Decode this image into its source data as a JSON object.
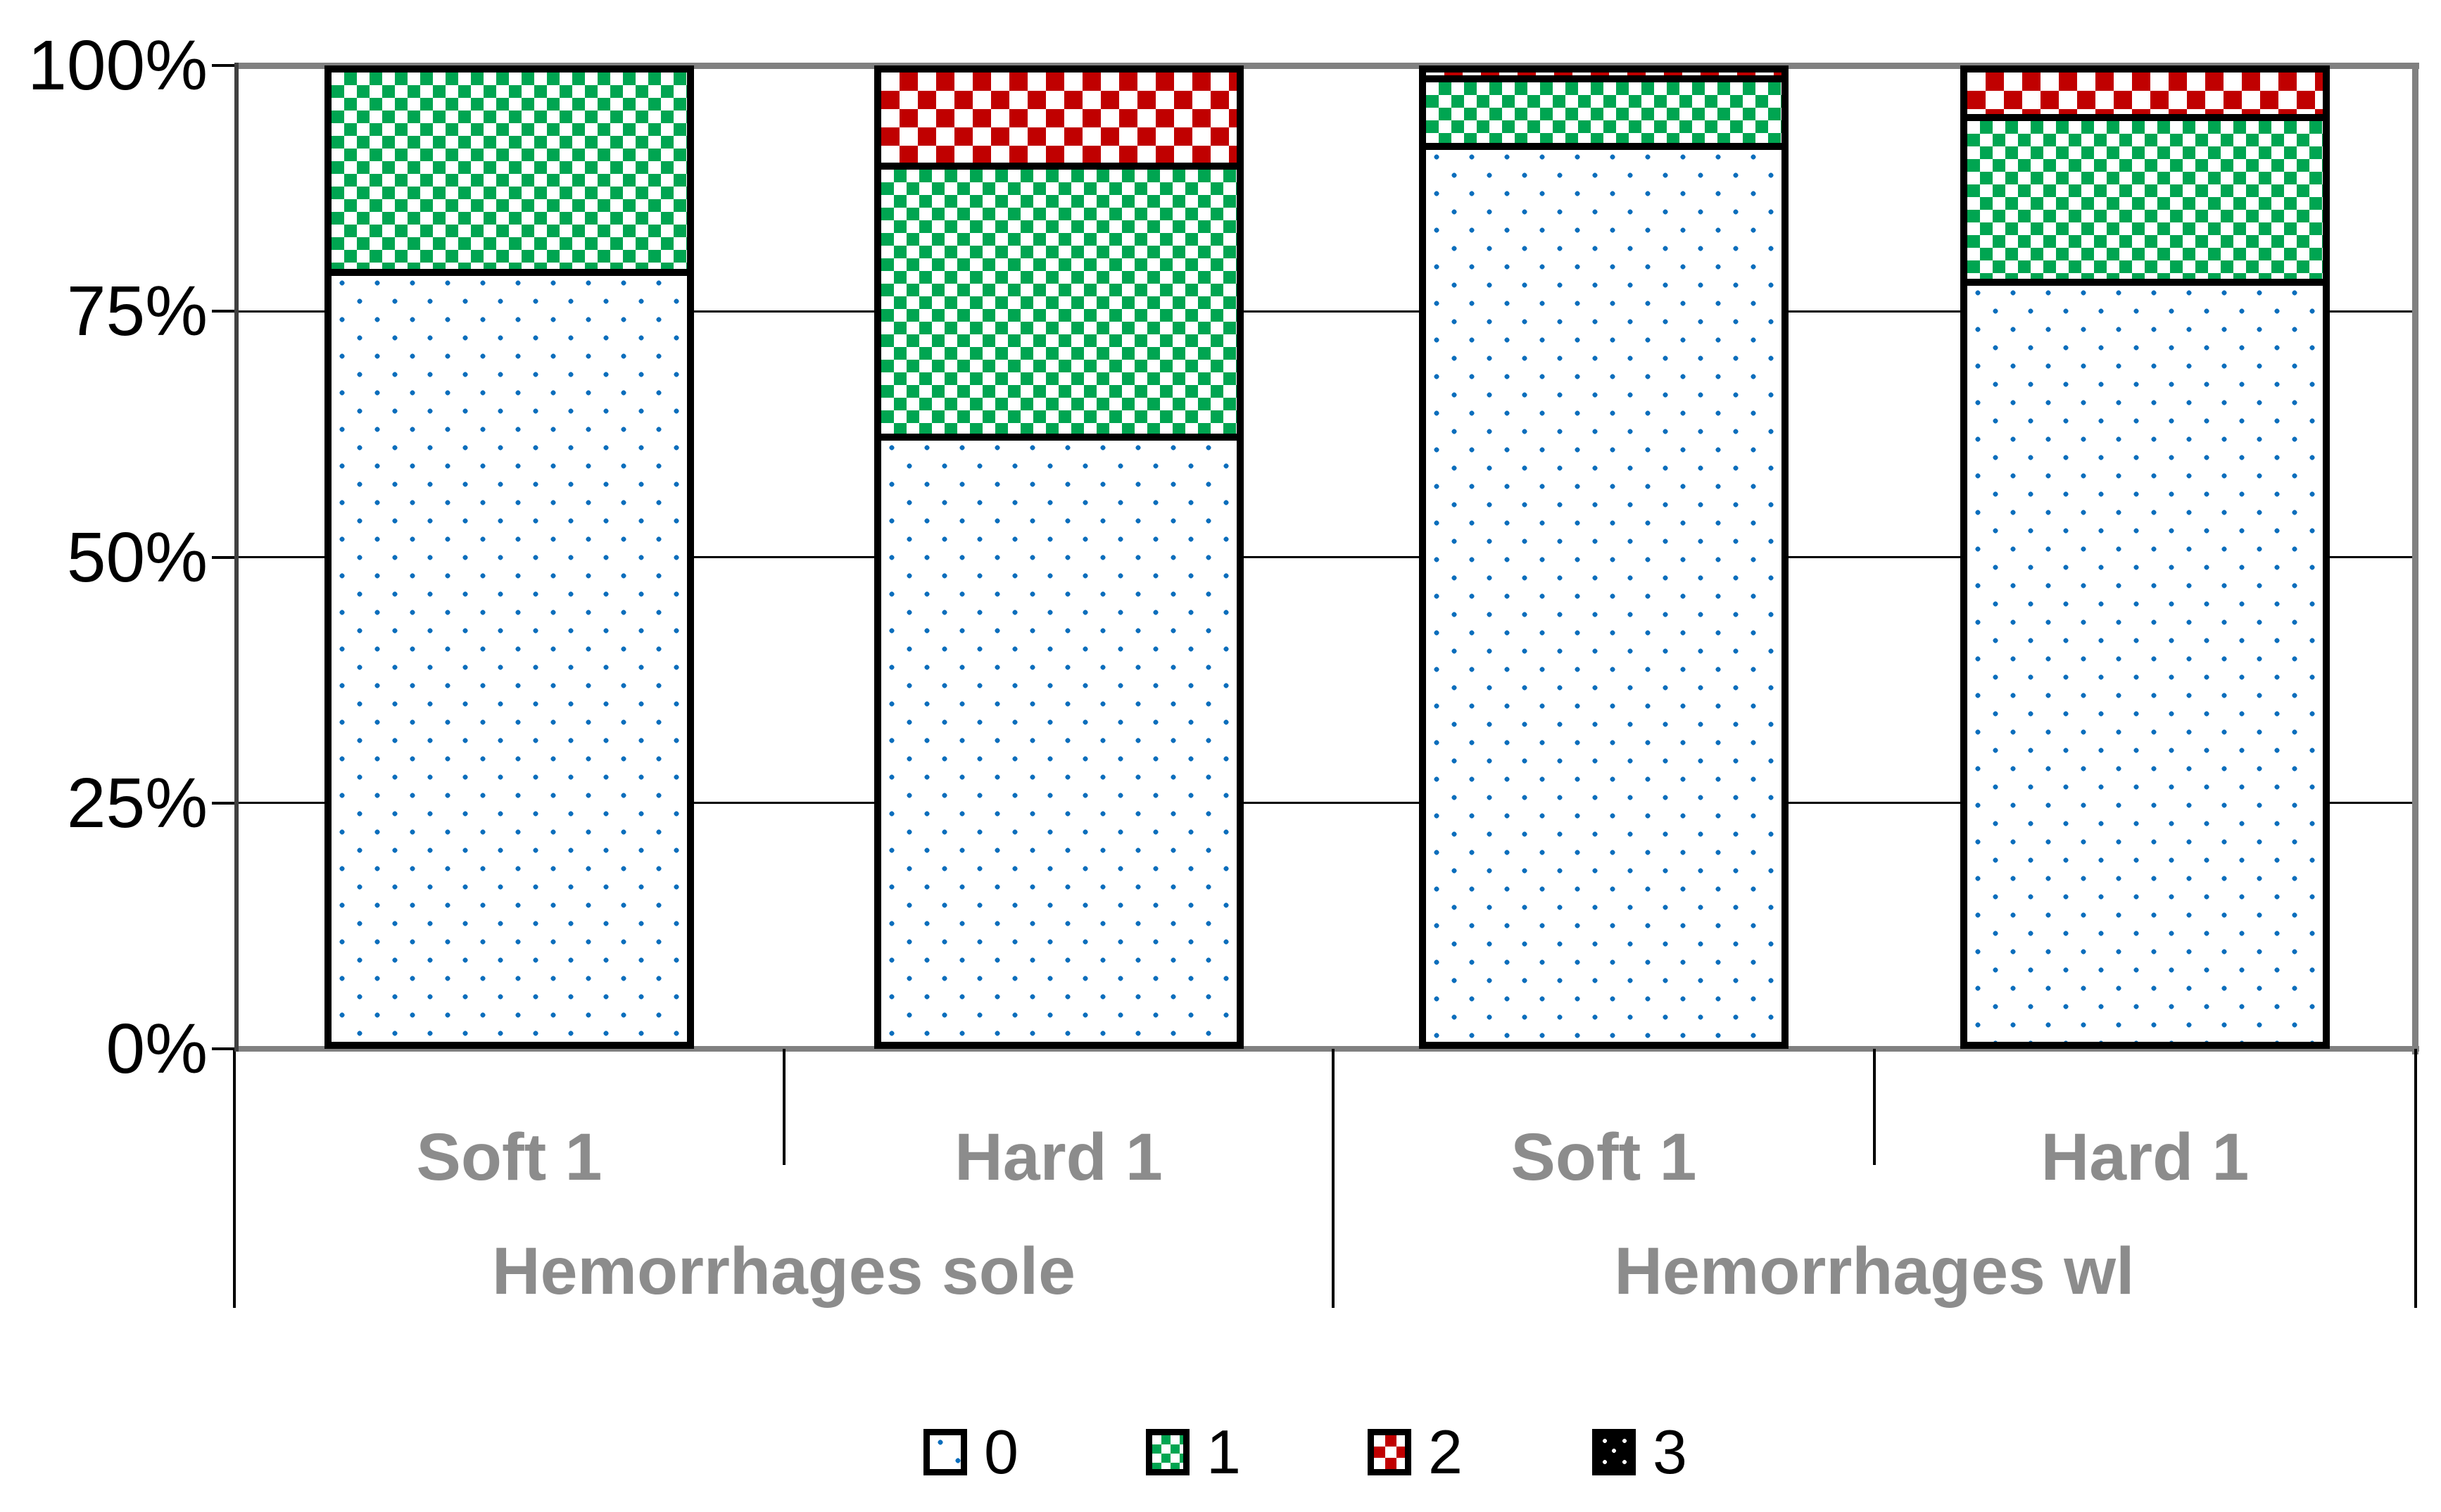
{
  "chart_data": {
    "type": "bar",
    "stacked": "percent",
    "title": "",
    "y_ticks": [
      "100%",
      "75%",
      "50%",
      "25%",
      "0%"
    ],
    "ylim": [
      0,
      100
    ],
    "grid": "horizontal",
    "categories": [
      "Soft 1",
      "Hard 1",
      "Soft 1",
      "Hard 1"
    ],
    "groups": [
      {
        "label": "Hemorrhages sole",
        "span": [
          0,
          1
        ]
      },
      {
        "label": "Hemorrhages wl",
        "span": [
          2,
          3
        ]
      }
    ],
    "series": [
      {
        "name": "0",
        "pattern": "blue-dots",
        "values": [
          79,
          62,
          92,
          78
        ]
      },
      {
        "name": "1",
        "pattern": "green-checker",
        "values": [
          21,
          28,
          7,
          17
        ]
      },
      {
        "name": "2",
        "pattern": "red-checker",
        "values": [
          0,
          10,
          1,
          5
        ]
      },
      {
        "name": "3",
        "pattern": "black-dots",
        "values": [
          0,
          0,
          0,
          0
        ]
      }
    ],
    "legend": {
      "position": "bottom",
      "entries": [
        "0",
        "1",
        "2",
        "3"
      ]
    },
    "colors": {
      "series0_dot_blue": "#0b6ebc",
      "series1_green": "#00a551",
      "series2_red": "#c00000",
      "series3_black": "#000000",
      "gridline_black": "#000000",
      "frame_gray": "#808080",
      "category_label_gray": "#8c8c8c",
      "tick_label_black": "#000000"
    }
  }
}
